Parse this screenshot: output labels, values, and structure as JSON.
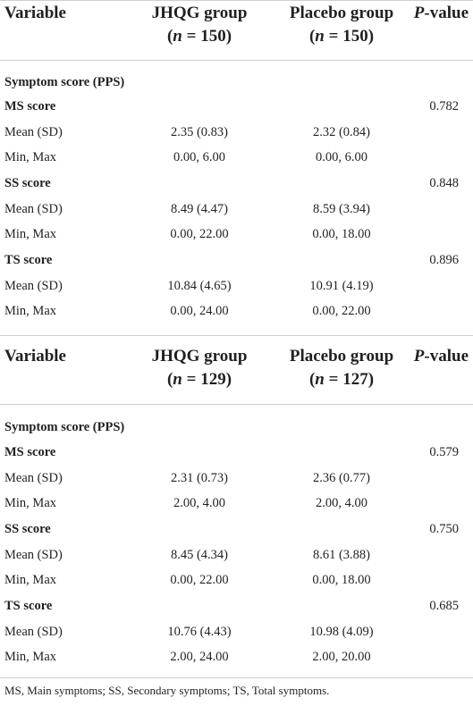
{
  "tables": [
    {
      "header": {
        "variable": "Variable",
        "jhqg_group": "JHQG group",
        "jhqg_n": "150",
        "placebo_group": "Placebo group",
        "placebo_n": "150",
        "p_italic": "P",
        "p_rest": "-value"
      },
      "section_title": "Symptom score (PPS)",
      "blocks": [
        {
          "name": "MS score",
          "p": "0.782",
          "mean_label": "Mean (SD)",
          "mean_jhqg": "2.35 (0.83)",
          "mean_placebo": "2.32 (0.84)",
          "range_label": "Min, Max",
          "range_jhqg": "0.00, 6.00",
          "range_placebo": "0.00, 6.00"
        },
        {
          "name": "SS score",
          "p": "0.848",
          "mean_label": "Mean (SD)",
          "mean_jhqg": "8.49 (4.47)",
          "mean_placebo": "8.59 (3.94)",
          "range_label": "Min, Max",
          "range_jhqg": "0.00, 22.00",
          "range_placebo": "0.00, 18.00"
        },
        {
          "name": "TS score",
          "p": "0.896",
          "mean_label": "Mean (SD)",
          "mean_jhqg": "10.84 (4.65)",
          "mean_placebo": "10.91 (4.19)",
          "range_label": "Min, Max",
          "range_jhqg": "0.00, 24.00",
          "range_placebo": "0.00, 22.00"
        }
      ]
    },
    {
      "header": {
        "variable": "Variable",
        "jhqg_group": "JHQG group",
        "jhqg_n": "129",
        "placebo_group": "Placebo group",
        "placebo_n": "127",
        "p_italic": "P",
        "p_rest": "-value"
      },
      "section_title": "Symptom score (PPS)",
      "blocks": [
        {
          "name": "MS score",
          "p": "0.579",
          "mean_label": "Mean (SD)",
          "mean_jhqg": "2.31 (0.73)",
          "mean_placebo": "2.36 (0.77)",
          "range_label": "Min, Max",
          "range_jhqg": "2.00, 4.00",
          "range_placebo": "2.00, 4.00"
        },
        {
          "name": "SS score",
          "p": "0.750",
          "mean_label": "Mean (SD)",
          "mean_jhqg": "8.45 (4.34)",
          "mean_placebo": "8.61 (3.88)",
          "range_label": "Min, Max",
          "range_jhqg": "0.00, 22.00",
          "range_placebo": "0.00, 18.00"
        },
        {
          "name": "TS score",
          "p": "0.685",
          "mean_label": "Mean (SD)",
          "mean_jhqg": "10.76 (4.43)",
          "mean_placebo": "10.98 (4.09)",
          "range_label": "Min, Max",
          "range_jhqg": "2.00, 24.00",
          "range_placebo": "2.00, 20.00"
        }
      ]
    }
  ],
  "footnote": "MS, Main symptoms; SS, Secondary symptoms; TS, Total symptoms."
}
